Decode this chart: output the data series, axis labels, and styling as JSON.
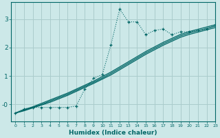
{
  "bg_color": "#cce8e8",
  "grid_color": "#aacccc",
  "line_color": "#006666",
  "xlabel": "Humidex (Indice chaleur)",
  "xlim": [
    -0.5,
    23
  ],
  "ylim": [
    -0.6,
    3.6
  ],
  "yticks": [
    0,
    1,
    2,
    3
  ],
  "ytick_labels": [
    "-0",
    "1",
    "2",
    "3"
  ],
  "xticks": [
    0,
    1,
    2,
    3,
    4,
    5,
    6,
    7,
    8,
    9,
    10,
    11,
    12,
    13,
    14,
    15,
    16,
    17,
    18,
    19,
    20,
    21,
    22,
    23
  ],
  "data_x": [
    0,
    1,
    2,
    3,
    4,
    5,
    6,
    7,
    8,
    9,
    10,
    11,
    12,
    13,
    14,
    15,
    16,
    17,
    18,
    19,
    20,
    21,
    22,
    23
  ],
  "data_y": [
    -0.3,
    -0.15,
    -0.1,
    -0.1,
    -0.1,
    -0.1,
    -0.1,
    -0.05,
    0.55,
    0.92,
    1.05,
    2.1,
    3.35,
    2.9,
    2.9,
    2.45,
    2.6,
    2.65,
    2.45,
    2.55,
    2.55,
    2.6,
    2.65,
    2.8
  ],
  "smooth1_x": [
    0,
    1,
    2,
    3,
    4,
    5,
    6,
    7,
    8,
    9,
    10,
    11,
    12,
    13,
    14,
    15,
    16,
    17,
    18,
    19,
    20,
    21,
    22,
    23
  ],
  "smooth1_y": [
    -0.3,
    -0.18,
    -0.08,
    0.04,
    0.16,
    0.28,
    0.4,
    0.54,
    0.68,
    0.82,
    0.98,
    1.14,
    1.32,
    1.5,
    1.68,
    1.86,
    2.02,
    2.18,
    2.32,
    2.46,
    2.56,
    2.64,
    2.72,
    2.8
  ],
  "smooth2_x": [
    0,
    1,
    2,
    3,
    4,
    5,
    6,
    7,
    8,
    9,
    10,
    11,
    12,
    13,
    14,
    15,
    16,
    17,
    18,
    19,
    20,
    21,
    22,
    23
  ],
  "smooth2_y": [
    -0.3,
    -0.2,
    -0.1,
    0.0,
    0.12,
    0.24,
    0.36,
    0.5,
    0.64,
    0.78,
    0.93,
    1.09,
    1.27,
    1.45,
    1.63,
    1.81,
    1.97,
    2.13,
    2.27,
    2.41,
    2.51,
    2.59,
    2.67,
    2.75
  ],
  "smooth3_x": [
    0,
    1,
    2,
    3,
    4,
    5,
    6,
    7,
    8,
    9,
    10,
    11,
    12,
    13,
    14,
    15,
    16,
    17,
    18,
    19,
    20,
    21,
    22,
    23
  ],
  "smooth3_y": [
    -0.3,
    -0.22,
    -0.12,
    -0.02,
    0.08,
    0.2,
    0.32,
    0.46,
    0.6,
    0.74,
    0.89,
    1.04,
    1.22,
    1.4,
    1.58,
    1.76,
    1.92,
    2.08,
    2.22,
    2.36,
    2.46,
    2.54,
    2.62,
    2.7
  ]
}
